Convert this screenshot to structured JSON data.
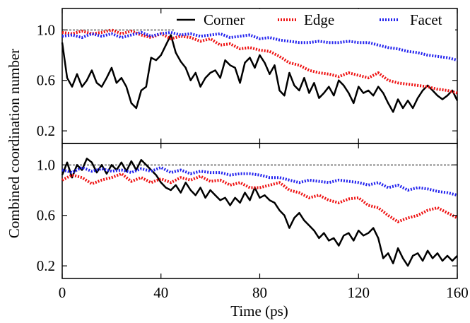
{
  "chart_data": {
    "type": "line",
    "xlabel": "Time (ps)",
    "ylabel": "Combined coordination number",
    "xlim": [
      0,
      160
    ],
    "ylim": [
      0.1,
      1.17
    ],
    "xticks": [
      "0",
      "40",
      "80",
      "120",
      "160"
    ],
    "yticks": [
      "0.2",
      "0.6",
      "1.0"
    ],
    "ytick_values": [
      0.2,
      0.6,
      1.0
    ],
    "xtick_values": [
      0,
      40,
      80,
      120,
      160
    ],
    "reference_line": 1.0,
    "legend": {
      "position": "top",
      "entries": [
        {
          "label": "Corner",
          "color": "#000000",
          "style": "solid"
        },
        {
          "label": "Edge",
          "color": "#ee1111",
          "style": "dotted"
        },
        {
          "label": "Facet",
          "color": "#2222ee",
          "style": "dotted"
        }
      ]
    },
    "panels": [
      {
        "position": "top",
        "series": [
          {
            "name": "Corner",
            "color": "#000000",
            "x": [
              0,
              2,
              4,
              6,
              8,
              10,
              12,
              14,
              16,
              18,
              20,
              22,
              24,
              26,
              28,
              30,
              32,
              34,
              36,
              38,
              40,
              42,
              44,
              46,
              48,
              50,
              52,
              54,
              56,
              58,
              60,
              62,
              64,
              66,
              68,
              70,
              72,
              74,
              76,
              78,
              80,
              82,
              84,
              86,
              88,
              90,
              92,
              94,
              96,
              98,
              100,
              102,
              104,
              106,
              108,
              110,
              112,
              114,
              116,
              118,
              120,
              122,
              124,
              126,
              128,
              130,
              132,
              134,
              136,
              138,
              140,
              142,
              144,
              146,
              148,
              150,
              152,
              154,
              156,
              158,
              160
            ],
            "y": [
              0.9,
              0.62,
              0.55,
              0.65,
              0.55,
              0.6,
              0.68,
              0.58,
              0.55,
              0.62,
              0.7,
              0.58,
              0.62,
              0.55,
              0.42,
              0.38,
              0.52,
              0.55,
              0.78,
              0.76,
              0.8,
              0.88,
              0.96,
              0.82,
              0.75,
              0.7,
              0.6,
              0.66,
              0.55,
              0.62,
              0.66,
              0.68,
              0.62,
              0.76,
              0.72,
              0.7,
              0.58,
              0.74,
              0.78,
              0.7,
              0.8,
              0.74,
              0.65,
              0.72,
              0.52,
              0.48,
              0.66,
              0.56,
              0.52,
              0.62,
              0.5,
              0.58,
              0.46,
              0.5,
              0.55,
              0.48,
              0.6,
              0.56,
              0.5,
              0.42,
              0.55,
              0.5,
              0.52,
              0.48,
              0.55,
              0.5,
              0.42,
              0.35,
              0.45,
              0.38,
              0.44,
              0.38,
              0.46,
              0.52,
              0.56,
              0.52,
              0.48,
              0.45,
              0.48,
              0.52,
              0.44
            ]
          },
          {
            "name": "Edge",
            "color": "#ee1111",
            "x": [
              0,
              4,
              8,
              12,
              16,
              20,
              24,
              28,
              32,
              36,
              40,
              44,
              48,
              52,
              56,
              60,
              64,
              68,
              72,
              76,
              80,
              84,
              88,
              92,
              96,
              100,
              104,
              108,
              112,
              116,
              120,
              124,
              128,
              132,
              136,
              140,
              144,
              148,
              152,
              156,
              160
            ],
            "y": [
              0.98,
              0.97,
              0.99,
              0.97,
              0.98,
              1.0,
              0.97,
              0.99,
              0.96,
              0.94,
              0.97,
              0.93,
              0.95,
              0.94,
              0.91,
              0.93,
              0.88,
              0.89,
              0.85,
              0.86,
              0.84,
              0.83,
              0.79,
              0.74,
              0.72,
              0.68,
              0.66,
              0.65,
              0.63,
              0.66,
              0.64,
              0.62,
              0.66,
              0.6,
              0.58,
              0.57,
              0.56,
              0.55,
              0.53,
              0.52,
              0.5
            ]
          },
          {
            "name": "Facet",
            "color": "#2222ee",
            "x": [
              0,
              4,
              8,
              12,
              16,
              20,
              24,
              28,
              32,
              36,
              40,
              44,
              48,
              52,
              56,
              60,
              64,
              68,
              72,
              76,
              80,
              84,
              88,
              92,
              96,
              100,
              104,
              108,
              112,
              116,
              120,
              124,
              128,
              132,
              136,
              140,
              144,
              148,
              152,
              156,
              160
            ],
            "y": [
              0.95,
              0.96,
              0.94,
              0.97,
              0.95,
              0.97,
              0.94,
              0.96,
              0.98,
              0.95,
              0.97,
              0.98,
              0.96,
              0.97,
              0.95,
              0.96,
              0.97,
              0.94,
              0.95,
              0.96,
              0.93,
              0.94,
              0.92,
              0.91,
              0.9,
              0.9,
              0.91,
              0.9,
              0.9,
              0.91,
              0.9,
              0.9,
              0.88,
              0.86,
              0.85,
              0.83,
              0.82,
              0.8,
              0.79,
              0.78,
              0.76
            ]
          }
        ]
      },
      {
        "position": "bottom",
        "series": [
          {
            "name": "Corner",
            "color": "#000000",
            "x": [
              0,
              2,
              4,
              6,
              8,
              10,
              12,
              14,
              16,
              18,
              20,
              22,
              24,
              26,
              28,
              30,
              32,
              34,
              36,
              38,
              40,
              42,
              44,
              46,
              48,
              50,
              52,
              54,
              56,
              58,
              60,
              62,
              64,
              66,
              68,
              70,
              72,
              74,
              76,
              78,
              80,
              82,
              84,
              86,
              88,
              90,
              92,
              94,
              96,
              98,
              100,
              102,
              104,
              106,
              108,
              110,
              112,
              114,
              116,
              118,
              120,
              122,
              124,
              126,
              128,
              130,
              132,
              134,
              136,
              138,
              140,
              142,
              144,
              146,
              148,
              150,
              152,
              154,
              156,
              158,
              160
            ],
            "y": [
              0.92,
              1.02,
              0.9,
              1.0,
              0.96,
              1.05,
              1.02,
              0.94,
              1.0,
              0.93,
              1.0,
              0.96,
              1.02,
              0.95,
              1.03,
              0.96,
              1.04,
              1.0,
              0.96,
              0.92,
              0.86,
              0.82,
              0.8,
              0.84,
              0.78,
              0.86,
              0.8,
              0.76,
              0.82,
              0.74,
              0.8,
              0.76,
              0.72,
              0.74,
              0.68,
              0.74,
              0.7,
              0.78,
              0.72,
              0.82,
              0.74,
              0.76,
              0.72,
              0.7,
              0.64,
              0.6,
              0.5,
              0.58,
              0.62,
              0.56,
              0.52,
              0.48,
              0.42,
              0.46,
              0.4,
              0.42,
              0.36,
              0.44,
              0.46,
              0.4,
              0.48,
              0.44,
              0.46,
              0.5,
              0.42,
              0.26,
              0.3,
              0.22,
              0.34,
              0.26,
              0.2,
              0.28,
              0.3,
              0.24,
              0.32,
              0.26,
              0.3,
              0.24,
              0.28,
              0.24,
              0.28
            ]
          },
          {
            "name": "Edge",
            "color": "#ee1111",
            "x": [
              0,
              4,
              8,
              12,
              16,
              20,
              24,
              28,
              32,
              36,
              40,
              44,
              48,
              52,
              56,
              60,
              64,
              68,
              72,
              76,
              80,
              84,
              88,
              92,
              96,
              100,
              104,
              108,
              112,
              116,
              120,
              124,
              128,
              132,
              136,
              140,
              144,
              148,
              152,
              156,
              160
            ],
            "y": [
              0.88,
              0.92,
              0.9,
              0.85,
              0.88,
              0.9,
              0.93,
              0.87,
              0.9,
              0.86,
              0.89,
              0.86,
              0.9,
              0.88,
              0.91,
              0.87,
              0.88,
              0.84,
              0.86,
              0.82,
              0.82,
              0.84,
              0.86,
              0.8,
              0.78,
              0.74,
              0.76,
              0.72,
              0.7,
              0.73,
              0.74,
              0.68,
              0.66,
              0.6,
              0.55,
              0.58,
              0.6,
              0.64,
              0.66,
              0.62,
              0.58
            ]
          },
          {
            "name": "Facet",
            "color": "#2222ee",
            "x": [
              0,
              4,
              8,
              12,
              16,
              20,
              24,
              28,
              32,
              36,
              40,
              44,
              48,
              52,
              56,
              60,
              64,
              68,
              72,
              76,
              80,
              84,
              88,
              92,
              96,
              100,
              104,
              108,
              112,
              116,
              120,
              124,
              128,
              132,
              136,
              140,
              144,
              148,
              152,
              156,
              160
            ],
            "y": [
              0.96,
              0.94,
              0.98,
              0.95,
              0.97,
              0.95,
              0.96,
              0.94,
              0.97,
              0.95,
              0.98,
              0.94,
              0.96,
              0.93,
              0.95,
              0.94,
              0.94,
              0.92,
              0.93,
              0.93,
              0.92,
              0.9,
              0.9,
              0.88,
              0.86,
              0.88,
              0.87,
              0.86,
              0.88,
              0.87,
              0.86,
              0.84,
              0.86,
              0.82,
              0.84,
              0.8,
              0.82,
              0.81,
              0.79,
              0.78,
              0.76
            ]
          }
        ]
      }
    ]
  }
}
